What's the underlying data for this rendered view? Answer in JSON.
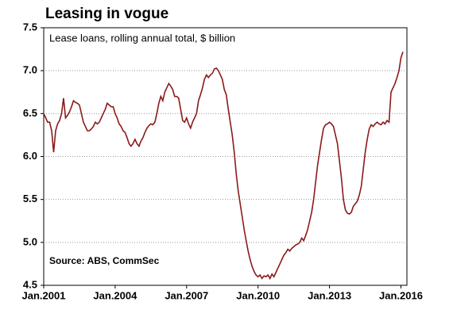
{
  "chart_data": {
    "type": "line",
    "title": "Leasing in vogue",
    "subtitle": "Lease loans, rolling annual total, $ billion",
    "source": "Source: ABS, CommSec",
    "x": [
      "2001-01",
      "2001-02",
      "2001-03",
      "2001-04",
      "2001-05",
      "2001-06",
      "2001-07",
      "2001-08",
      "2001-09",
      "2001-10",
      "2001-11",
      "2001-12",
      "2002-01",
      "2002-02",
      "2002-03",
      "2002-04",
      "2002-05",
      "2002-06",
      "2002-07",
      "2002-08",
      "2002-09",
      "2002-10",
      "2002-11",
      "2002-12",
      "2003-01",
      "2003-02",
      "2003-03",
      "2003-04",
      "2003-05",
      "2003-06",
      "2003-07",
      "2003-08",
      "2003-09",
      "2003-10",
      "2003-11",
      "2003-12",
      "2004-01",
      "2004-02",
      "2004-03",
      "2004-04",
      "2004-05",
      "2004-06",
      "2004-07",
      "2004-08",
      "2004-09",
      "2004-10",
      "2004-11",
      "2004-12",
      "2005-01",
      "2005-02",
      "2005-03",
      "2005-04",
      "2005-05",
      "2005-06",
      "2005-07",
      "2005-08",
      "2005-09",
      "2005-10",
      "2005-11",
      "2005-12",
      "2006-01",
      "2006-02",
      "2006-03",
      "2006-04",
      "2006-05",
      "2006-06",
      "2006-07",
      "2006-08",
      "2006-09",
      "2006-10",
      "2006-11",
      "2006-12",
      "2007-01",
      "2007-02",
      "2007-03",
      "2007-04",
      "2007-05",
      "2007-06",
      "2007-07",
      "2007-08",
      "2007-09",
      "2007-10",
      "2007-11",
      "2007-12",
      "2008-01",
      "2008-02",
      "2008-03",
      "2008-04",
      "2008-05",
      "2008-06",
      "2008-07",
      "2008-08",
      "2008-09",
      "2008-10",
      "2008-11",
      "2008-12",
      "2009-01",
      "2009-02",
      "2009-03",
      "2009-04",
      "2009-05",
      "2009-06",
      "2009-07",
      "2009-08",
      "2009-09",
      "2009-10",
      "2009-11",
      "2009-12",
      "2010-01",
      "2010-02",
      "2010-03",
      "2010-04",
      "2010-05",
      "2010-06",
      "2010-07",
      "2010-08",
      "2010-09",
      "2010-10",
      "2010-11",
      "2010-12",
      "2011-01",
      "2011-02",
      "2011-03",
      "2011-04",
      "2011-05",
      "2011-06",
      "2011-07",
      "2011-08",
      "2011-09",
      "2011-10",
      "2011-11",
      "2011-12",
      "2012-01",
      "2012-02",
      "2012-03",
      "2012-04",
      "2012-05",
      "2012-06",
      "2012-07",
      "2012-08",
      "2012-09",
      "2012-10",
      "2012-11",
      "2012-12",
      "2013-01",
      "2013-02",
      "2013-03",
      "2013-04",
      "2013-05",
      "2013-06",
      "2013-07",
      "2013-08",
      "2013-09",
      "2013-10",
      "2013-11",
      "2013-12",
      "2014-01",
      "2014-02",
      "2014-03",
      "2014-04",
      "2014-05",
      "2014-06",
      "2014-07",
      "2014-08",
      "2014-09",
      "2014-10",
      "2014-11",
      "2014-12",
      "2015-01",
      "2015-02",
      "2015-03",
      "2015-04",
      "2015-05",
      "2015-06",
      "2015-07",
      "2015-08",
      "2015-09",
      "2015-10",
      "2015-11",
      "2015-12",
      "2016-01",
      "2016-02"
    ],
    "series": [
      {
        "name": "Lease loans",
        "color": "#8b1a1a",
        "values": [
          6.5,
          6.45,
          6.4,
          6.4,
          6.3,
          6.05,
          6.3,
          6.38,
          6.42,
          6.5,
          6.68,
          6.45,
          6.48,
          6.52,
          6.58,
          6.65,
          6.63,
          6.62,
          6.6,
          6.5,
          6.4,
          6.35,
          6.3,
          6.3,
          6.32,
          6.35,
          6.4,
          6.38,
          6.4,
          6.45,
          6.5,
          6.55,
          6.62,
          6.6,
          6.58,
          6.58,
          6.5,
          6.45,
          6.38,
          6.35,
          6.3,
          6.28,
          6.22,
          6.15,
          6.12,
          6.15,
          6.2,
          6.15,
          6.12,
          6.18,
          6.22,
          6.28,
          6.33,
          6.36,
          6.38,
          6.37,
          6.4,
          6.5,
          6.62,
          6.7,
          6.65,
          6.75,
          6.8,
          6.85,
          6.82,
          6.78,
          6.7,
          6.7,
          6.68,
          6.55,
          6.42,
          6.4,
          6.45,
          6.38,
          6.33,
          6.4,
          6.45,
          6.5,
          6.65,
          6.72,
          6.8,
          6.9,
          6.95,
          6.92,
          6.95,
          6.97,
          7.02,
          7.03,
          7.0,
          6.95,
          6.9,
          6.78,
          6.72,
          6.55,
          6.4,
          6.25,
          6.05,
          5.8,
          5.6,
          5.45,
          5.3,
          5.15,
          5.02,
          4.9,
          4.8,
          4.72,
          4.66,
          4.62,
          4.6,
          4.62,
          4.58,
          4.61,
          4.6,
          4.62,
          4.58,
          4.63,
          4.6,
          4.65,
          4.7,
          4.75,
          4.8,
          4.85,
          4.88,
          4.92,
          4.9,
          4.93,
          4.95,
          4.97,
          4.98,
          5.0,
          5.05,
          5.02,
          5.08,
          5.15,
          5.25,
          5.35,
          5.5,
          5.7,
          5.9,
          6.05,
          6.2,
          6.33,
          6.37,
          6.38,
          6.4,
          6.38,
          6.35,
          6.25,
          6.15,
          5.95,
          5.75,
          5.5,
          5.38,
          5.34,
          5.33,
          5.35,
          5.42,
          5.45,
          5.48,
          5.55,
          5.65,
          5.85,
          6.05,
          6.2,
          6.32,
          6.37,
          6.35,
          6.38,
          6.4,
          6.38,
          6.37,
          6.4,
          6.38,
          6.42,
          6.4,
          6.75,
          6.8,
          6.85,
          6.92,
          7.0,
          7.15,
          7.22
        ]
      }
    ],
    "xlim": [
      "2001-01",
      "2016-04"
    ],
    "xticks": [
      {
        "value": "2001-01",
        "label": "Jan.2001"
      },
      {
        "value": "2004-01",
        "label": "Jan.2004"
      },
      {
        "value": "2007-01",
        "label": "Jan.2007"
      },
      {
        "value": "2010-01",
        "label": "Jan.2010"
      },
      {
        "value": "2013-01",
        "label": "Jan.2013"
      },
      {
        "value": "2016-01",
        "label": "Jan.2016"
      }
    ],
    "ylim": [
      4.5,
      7.5
    ],
    "yticks": [
      4.5,
      {
        "value": 5,
        "label": "5.0"
      },
      5.5,
      {
        "value": 6,
        "label": "6.0"
      },
      6.5,
      {
        "value": 7,
        "label": "7.0"
      },
      7.5
    ],
    "grid": true
  }
}
